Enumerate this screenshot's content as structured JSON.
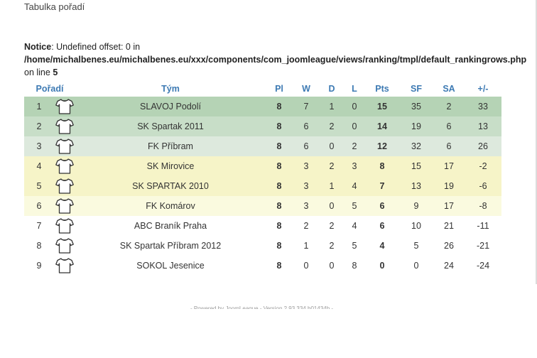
{
  "page": {
    "heading": "Tabulka pořadí"
  },
  "notice": {
    "label": "Notice",
    "message": ": Undefined offset: 0 in",
    "path": "/home/michalbenes.eu/michalbenes.eu/xxx/components/com_joomleague/views/ranking/tmpl/default_rankingrows.php",
    "line_prefix": "on line ",
    "line_number": "5"
  },
  "table": {
    "headers": {
      "rank": "Pořadí",
      "team": "Tým",
      "pl": "Pl",
      "w": "W",
      "d": "D",
      "l": "L",
      "pts": "Pts",
      "sf": "SF",
      "sa": "SA",
      "diff": "+/-"
    },
    "rows": [
      {
        "rank": "1",
        "team": "SLAVOJ Podolí",
        "pl": "8",
        "w": "7",
        "d": "1",
        "l": "0",
        "pts": "15",
        "sf": "35",
        "sa": "2",
        "diff": "33",
        "zone": "z1"
      },
      {
        "rank": "2",
        "team": "SK Spartak 2011",
        "pl": "8",
        "w": "6",
        "d": "2",
        "l": "0",
        "pts": "14",
        "sf": "19",
        "sa": "6",
        "diff": "13",
        "zone": "z2"
      },
      {
        "rank": "3",
        "team": "FK Příbram",
        "pl": "8",
        "w": "6",
        "d": "0",
        "l": "2",
        "pts": "12",
        "sf": "32",
        "sa": "6",
        "diff": "26",
        "zone": "z3"
      },
      {
        "rank": "4",
        "team": "SK Mirovice",
        "pl": "8",
        "w": "3",
        "d": "2",
        "l": "3",
        "pts": "8",
        "sf": "15",
        "sa": "17",
        "diff": "-2",
        "zone": "z4"
      },
      {
        "rank": "5",
        "team": "SK SPARTAK 2010",
        "pl": "8",
        "w": "3",
        "d": "1",
        "l": "4",
        "pts": "7",
        "sf": "13",
        "sa": "19",
        "diff": "-6",
        "zone": "z4"
      },
      {
        "rank": "6",
        "team": "FK Komárov",
        "pl": "8",
        "w": "3",
        "d": "0",
        "l": "5",
        "pts": "6",
        "sf": "9",
        "sa": "17",
        "diff": "-8",
        "zone": "z5"
      },
      {
        "rank": "7",
        "team": "ABC Braník Praha",
        "pl": "8",
        "w": "2",
        "d": "2",
        "l": "4",
        "pts": "6",
        "sf": "10",
        "sa": "21",
        "diff": "-11",
        "zone": "z6"
      },
      {
        "rank": "8",
        "team": "SK Spartak Příbram 2012",
        "pl": "8",
        "w": "1",
        "d": "2",
        "l": "5",
        "pts": "4",
        "sf": "5",
        "sa": "26",
        "diff": "-21",
        "zone": "z6"
      },
      {
        "rank": "9",
        "team": "SOKOL Jesenice",
        "pl": "8",
        "w": "0",
        "d": "0",
        "l": "8",
        "pts": "0",
        "sf": "0",
        "sa": "24",
        "diff": "-24",
        "zone": "z6"
      }
    ]
  },
  "colors": {
    "header_text": "#3d7ab3",
    "team_link": "#2a6aa8",
    "zone_1": "#b5d3b5",
    "zone_2": "#c8dec8",
    "zone_3": "#dde9dd",
    "zone_4": "#f6f4c8",
    "zone_5": "#fafadf"
  },
  "icons": {
    "team_logo": "jersey-icon"
  },
  "footer": {
    "text": "- Powered by JoomLeague - Version 2.93.334.b01434b -"
  }
}
